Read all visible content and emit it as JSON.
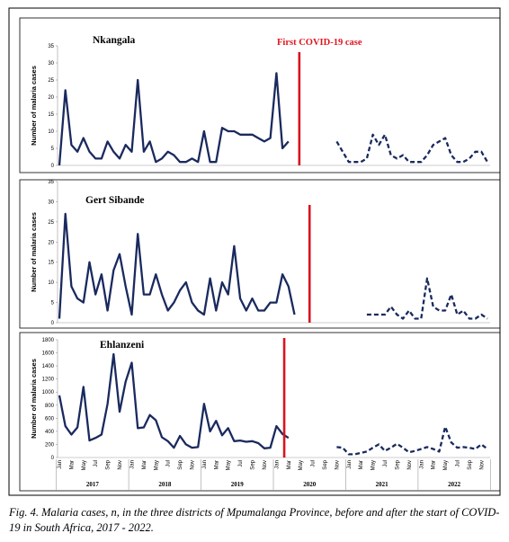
{
  "chart_data": [
    {
      "type": "line",
      "title": "Nkangala",
      "ylabel": "Number of malaria cases",
      "ylim": [
        0,
        35
      ],
      "yticks": [
        0,
        5,
        10,
        15,
        20,
        25,
        30,
        35
      ],
      "annotation": "First COVID-19 case",
      "covid_marker_index": 39.8,
      "pre_covid_values": [
        0,
        22,
        6,
        4,
        8,
        4,
        2,
        2,
        7,
        4,
        2,
        6,
        4,
        25,
        4,
        7,
        1,
        2,
        4,
        3,
        1,
        1,
        2,
        1,
        10,
        1,
        1,
        11,
        10,
        10,
        9,
        9,
        9,
        8,
        7,
        8,
        27,
        5,
        7
      ],
      "post_covid_values": [
        7,
        4,
        1,
        1,
        1,
        2,
        9,
        6,
        9,
        3,
        2,
        3,
        1,
        1,
        1,
        3,
        6,
        7,
        8,
        3,
        1,
        1,
        2,
        4,
        4,
        1
      ]
    },
    {
      "type": "line",
      "title": "Gert Sibande",
      "ylabel": "Number of malaria cases",
      "ylim": [
        0,
        35
      ],
      "yticks": [
        0,
        5,
        10,
        15,
        20,
        25,
        30,
        35
      ],
      "covid_marker_index": 41.5,
      "pre_covid_values": [
        1,
        27,
        9,
        6,
        5,
        15,
        7,
        12,
        3,
        13,
        17,
        9,
        2,
        22,
        7,
        7,
        12,
        7,
        3,
        5,
        8,
        10,
        5,
        3,
        2,
        11,
        3,
        10,
        7,
        19,
        6,
        3,
        6,
        3,
        3,
        5,
        5,
        12,
        9,
        2
      ],
      "post_covid_values": [
        2,
        2,
        2,
        2,
        4,
        2,
        1,
        3,
        1,
        1,
        11,
        4,
        3,
        3,
        7,
        2,
        3,
        1,
        1,
        2,
        1
      ]
    },
    {
      "type": "line",
      "title": "Ehlanzeni",
      "ylabel": "Number of malaria cases",
      "ylim": [
        0,
        1800
      ],
      "yticks": [
        0,
        200,
        400,
        600,
        800,
        1000,
        1200,
        1400,
        1600,
        1800
      ],
      "covid_marker_index": 37.3,
      "pre_covid_values": [
        950,
        480,
        350,
        460,
        1080,
        260,
        300,
        350,
        820,
        1580,
        700,
        1160,
        1450,
        450,
        460,
        650,
        570,
        310,
        250,
        150,
        330,
        200,
        150,
        160,
        820,
        400,
        560,
        340,
        450,
        250,
        260,
        240,
        250,
        220,
        140,
        150,
        480,
        360,
        300
      ],
      "post_covid_values": [
        160,
        150,
        50,
        50,
        70,
        90,
        150,
        200,
        100,
        150,
        210,
        150,
        80,
        100,
        130,
        160,
        130,
        90,
        470,
        230,
        150,
        160,
        150,
        130,
        200,
        130
      ]
    }
  ],
  "x_axis": {
    "month_labels": [
      "Jan",
      "Mar",
      "May",
      "Jul",
      "Sep",
      "Nov",
      "Jan",
      "Mar",
      "May",
      "Jul",
      "Sep",
      "Nov",
      "Jan",
      "Mar",
      "May",
      "Jul",
      "Sep",
      "Nov",
      "Jan",
      "Mar",
      "May",
      "Jul",
      "Sep",
      "Nov",
      "Jan",
      "Mar",
      "May",
      "Jul",
      "Sep",
      "Nov",
      "Jan",
      "Mar",
      "May",
      "Jul",
      "Sep",
      "Nov"
    ],
    "years": [
      "2017",
      "2018",
      "2019",
      "2020",
      "2021",
      "2022"
    ]
  },
  "colors": {
    "line": "#1a2a5e",
    "covid_marker": "#d8141e"
  },
  "caption": "Fig. 4. Malaria cases, n, in the three districts of Mpumalanga Province, before and after the start of COVID-19 in South Africa, 2017 - 2022."
}
